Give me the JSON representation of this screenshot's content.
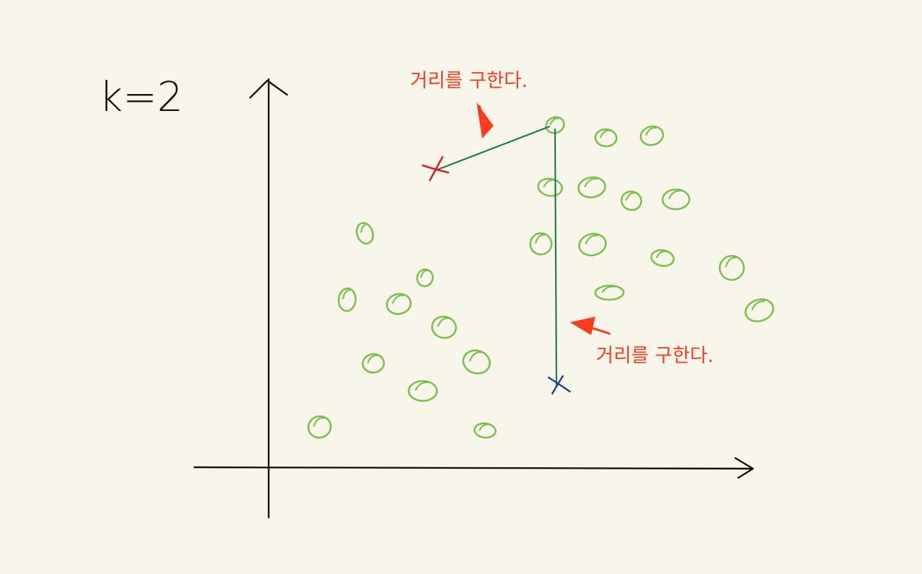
{
  "title": "k=2",
  "annotations": [
    {
      "id": "top",
      "text": "거리를 구한다."
    },
    {
      "id": "bottom",
      "text": "거리를 구한다."
    }
  ],
  "colors": {
    "background": "#f8f6ea",
    "axis": "#111111",
    "point": "#7cc04b",
    "distance_line": "#1f7a52",
    "annotation": "#ff3b1f",
    "query_red": "#d3202a",
    "query_blue": "#1c3f8f"
  },
  "icons": {
    "query_point_red": "x-mark-icon",
    "query_point_blue": "x-mark-icon",
    "data_point": "circle-icon",
    "annotation_arrow": "arrow-icon"
  }
}
